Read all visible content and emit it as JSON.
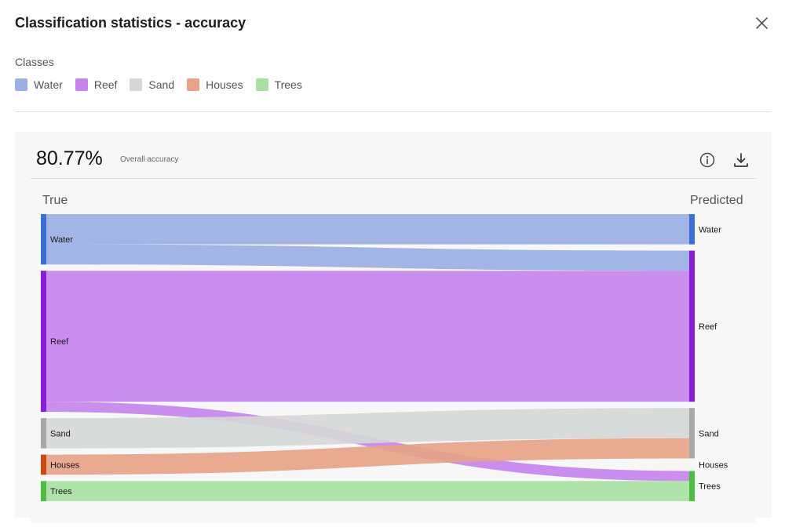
{
  "dialog": {
    "title": "Classification statistics - accuracy",
    "close_icon": "close-icon"
  },
  "classes": {
    "label": "Classes",
    "items": [
      {
        "name": "Water",
        "color": "#9aafe2",
        "node_color": "#3a6fd6"
      },
      {
        "name": "Reef",
        "color": "#c586eb",
        "node_color": "#8a1ed8"
      },
      {
        "name": "Sand",
        "color": "#d6d7d7",
        "node_color": "#a8a8a8"
      },
      {
        "name": "Houses",
        "color": "#e6a387",
        "node_color": "#c94a16"
      },
      {
        "name": "Trees",
        "color": "#a9e0a4",
        "node_color": "#4cbf42"
      }
    ]
  },
  "accuracy": {
    "value": "80.77%",
    "label": "Overall accuracy",
    "info_icon": "info-icon",
    "download_icon": "download-icon"
  },
  "chart_data": {
    "type": "sankey",
    "left_axis_label": "True",
    "right_axis_label": "Predicted",
    "nodes_true": [
      "Water",
      "Reef",
      "Sand",
      "Houses",
      "Trees"
    ],
    "nodes_predicted": [
      "Water",
      "Reef",
      "Sand",
      "Houses",
      "Trees"
    ],
    "links": [
      {
        "source": "Water",
        "target": "Water",
        "value": 3
      },
      {
        "source": "Water",
        "target": "Reef",
        "value": 2
      },
      {
        "source": "Reef",
        "target": "Reef",
        "value": 13
      },
      {
        "source": "Reef",
        "target": "Trees",
        "value": 1
      },
      {
        "source": "Sand",
        "target": "Sand",
        "value": 3
      },
      {
        "source": "Houses",
        "target": "Sand",
        "value": 2
      },
      {
        "source": "Trees",
        "target": "Trees",
        "value": 2
      }
    ]
  }
}
